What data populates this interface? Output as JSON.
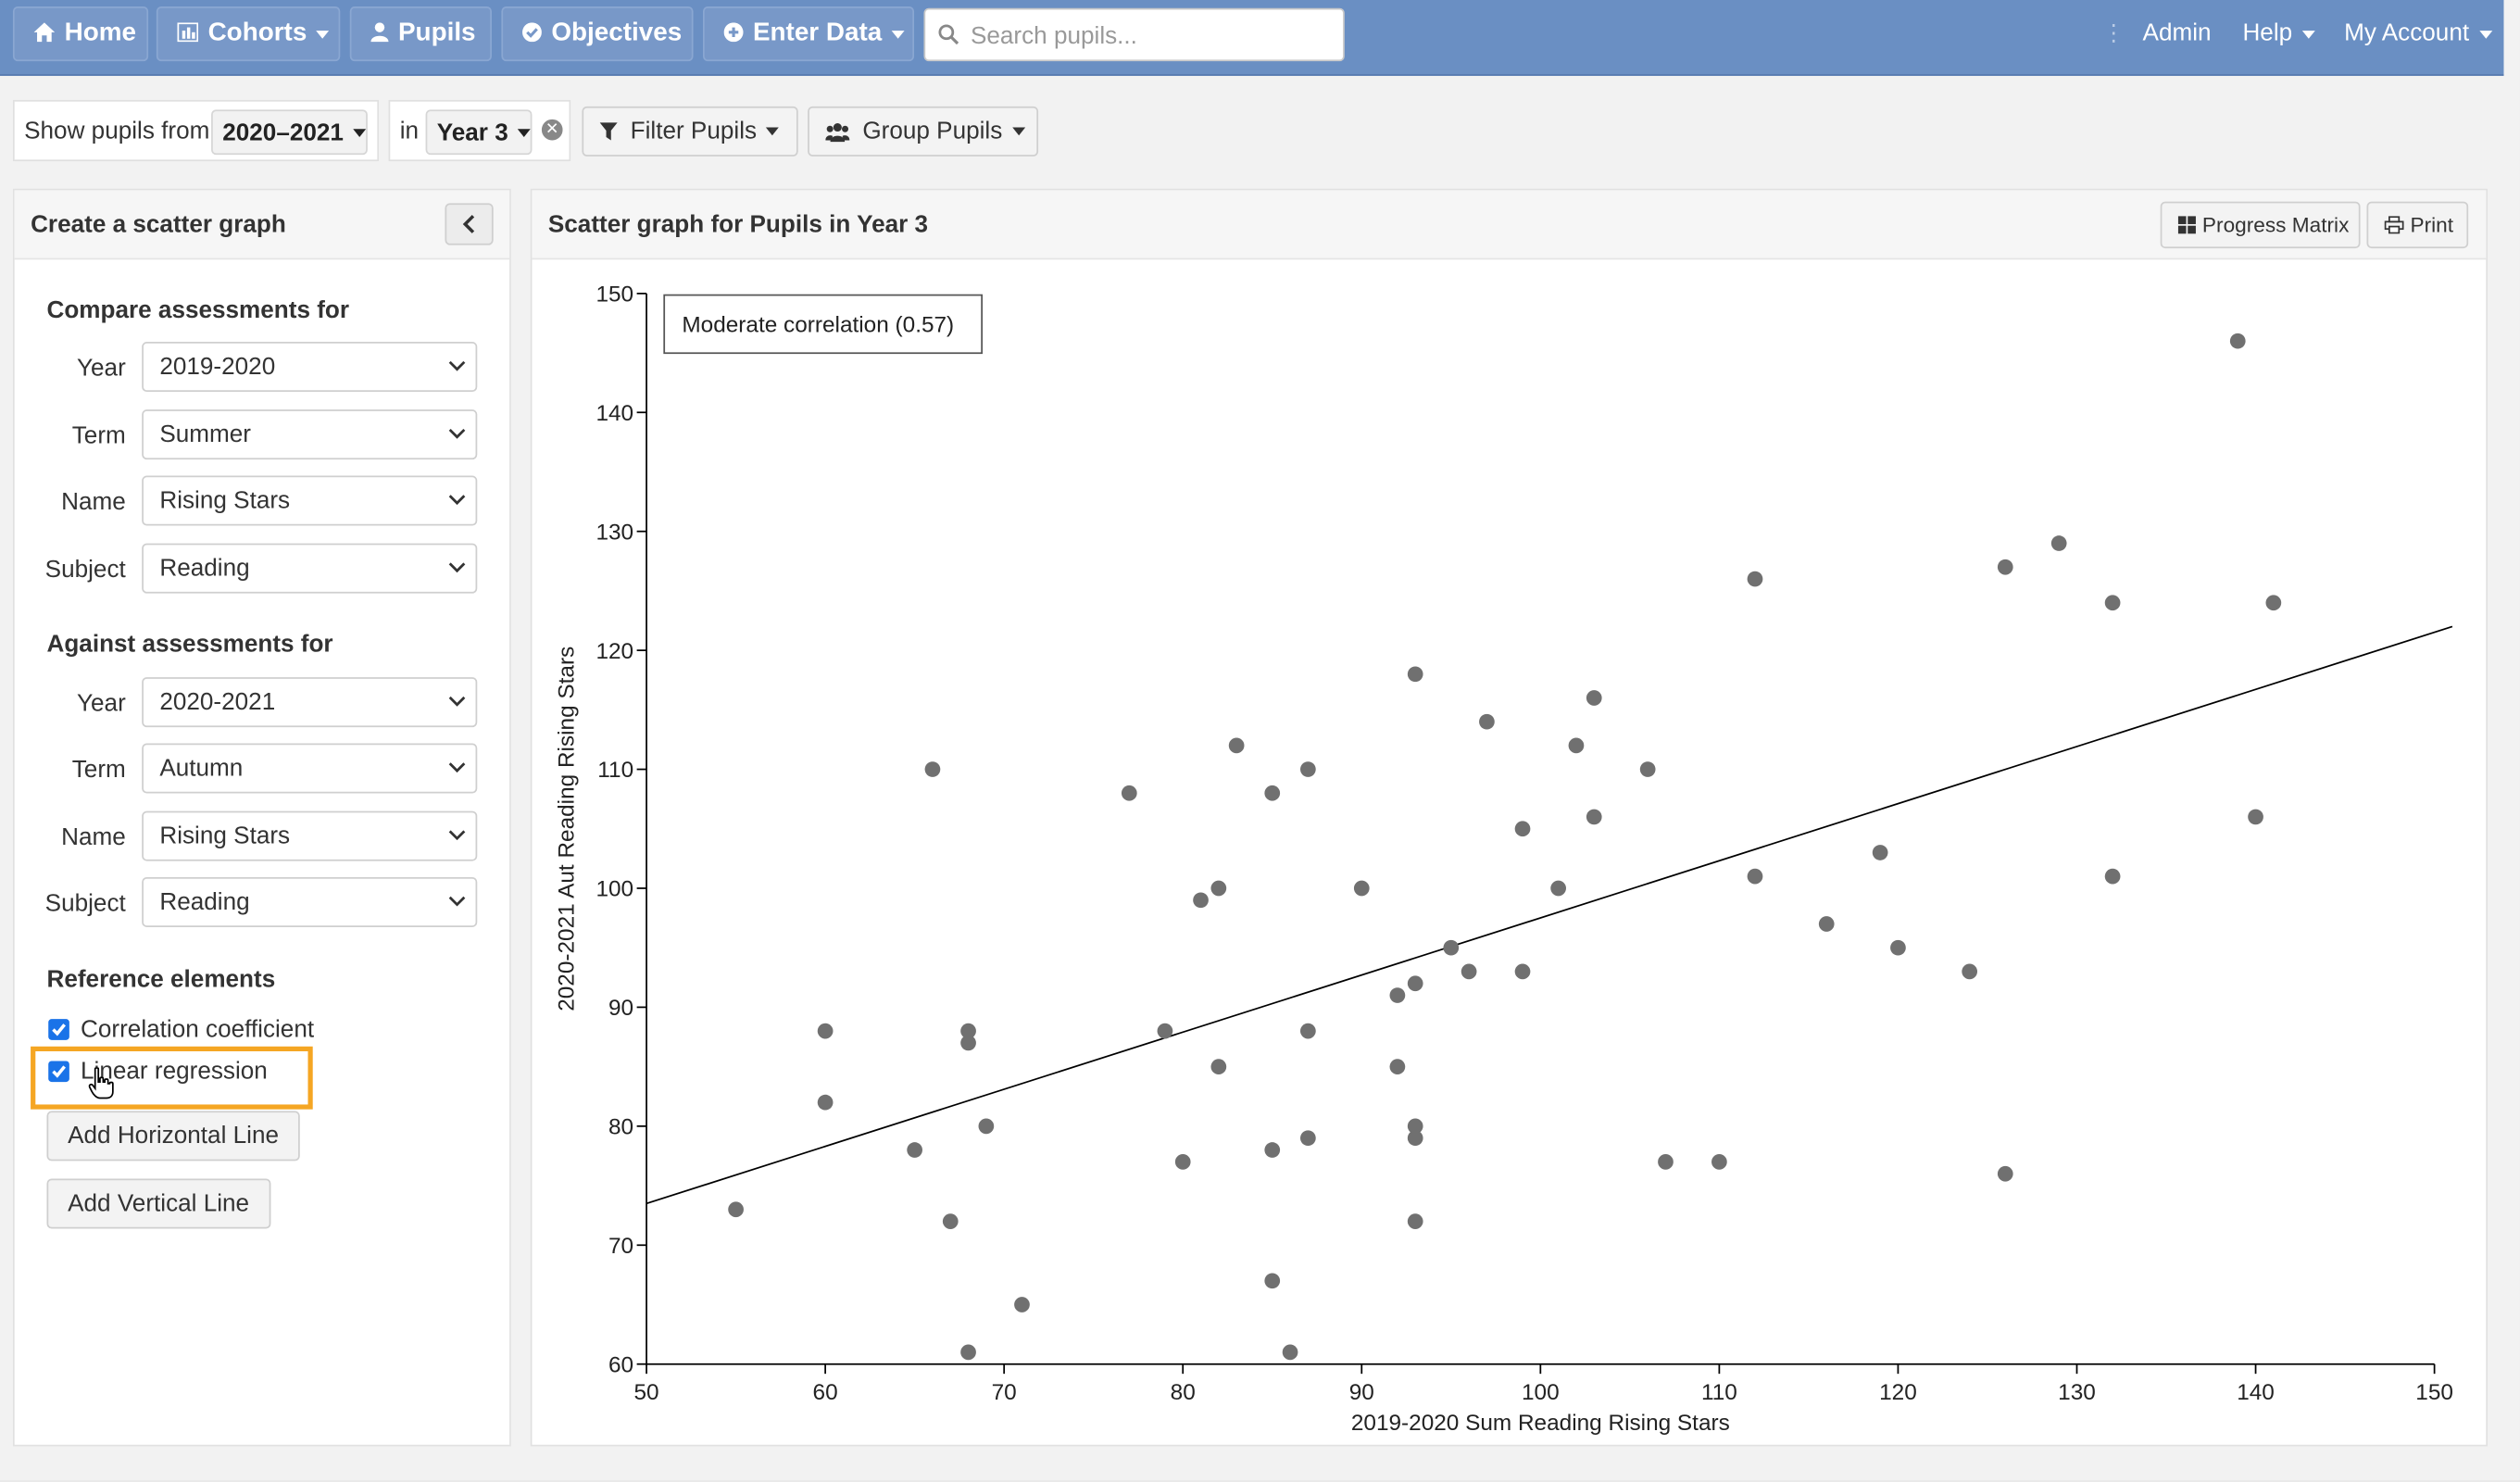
{
  "nav": {
    "home": "Home",
    "cohorts": "Cohorts",
    "pupils": "Pupils",
    "objectives": "Objectives",
    "enter_data": "Enter Data",
    "search_placeholder": "Search pupils...",
    "admin": "Admin",
    "help": "Help",
    "my_account": "My Account"
  },
  "filters": {
    "show_pupils_from": "Show pupils from",
    "academic_year": "2020–2021",
    "in_label": "in",
    "year_group": "Year 3",
    "filter_pupils": "Filter Pupils",
    "group_pupils": "Group Pupils"
  },
  "left_panel": {
    "title": "Create a scatter graph",
    "compare": {
      "heading": "Compare assessments for",
      "year_label": "Year",
      "year": "2019-2020",
      "term_label": "Term",
      "term": "Summer",
      "name_label": "Name",
      "name": "Rising Stars",
      "subject_label": "Subject",
      "subject": "Reading"
    },
    "against": {
      "heading": "Against assessments for",
      "year_label": "Year",
      "year": "2020-2021",
      "term_label": "Term",
      "term": "Autumn",
      "name_label": "Name",
      "name": "Rising Stars",
      "subject_label": "Subject",
      "subject": "Reading"
    },
    "reference": {
      "heading": "Reference elements",
      "correlation": "Correlation coefficient",
      "correlation_checked": true,
      "regression": "Linear regression",
      "regression_checked": true,
      "add_horizontal": "Add Horizontal Line",
      "add_vertical": "Add Vertical Line"
    }
  },
  "right_panel": {
    "title": "Scatter graph for Pupils in Year 3",
    "progress_matrix": "Progress Matrix",
    "print": "Print"
  },
  "colors": {
    "nav_bg": "#6a8fc3",
    "highlight": "#f5a623",
    "checkbox": "#1a73e8",
    "point": "#707070"
  },
  "chart_data": {
    "type": "scatter",
    "xlabel": "2019-2020 Sum Reading Rising Stars",
    "ylabel": "2020-2021 Aut Reading Rising Stars",
    "xlim": [
      50,
      150
    ],
    "ylim": [
      60,
      150
    ],
    "xticks": [
      50,
      60,
      70,
      80,
      90,
      100,
      110,
      120,
      130,
      140,
      150
    ],
    "yticks": [
      60,
      70,
      80,
      90,
      100,
      110,
      120,
      130,
      140,
      150
    ],
    "annotation": "Moderate correlation (0.57)",
    "regression_line": {
      "x": [
        50,
        151
      ],
      "y": [
        73.5,
        122
      ]
    },
    "points": [
      [
        55,
        73
      ],
      [
        60,
        88
      ],
      [
        60,
        82
      ],
      [
        65,
        78
      ],
      [
        66,
        110
      ],
      [
        67,
        72
      ],
      [
        68,
        88
      ],
      [
        68,
        87
      ],
      [
        68,
        61
      ],
      [
        69,
        80
      ],
      [
        71,
        65
      ],
      [
        77,
        108
      ],
      [
        79,
        88
      ],
      [
        80,
        77
      ],
      [
        81,
        99
      ],
      [
        82,
        100
      ],
      [
        82,
        85
      ],
      [
        83,
        112
      ],
      [
        85,
        108
      ],
      [
        85,
        78
      ],
      [
        85,
        67
      ],
      [
        86,
        61
      ],
      [
        87,
        110
      ],
      [
        87,
        88
      ],
      [
        87,
        79
      ],
      [
        90,
        100
      ],
      [
        92,
        91
      ],
      [
        92,
        85
      ],
      [
        93,
        118
      ],
      [
        93,
        92
      ],
      [
        93,
        80
      ],
      [
        93,
        79
      ],
      [
        93,
        72
      ],
      [
        95,
        95
      ],
      [
        96,
        93
      ],
      [
        97,
        114
      ],
      [
        99,
        105
      ],
      [
        99,
        93
      ],
      [
        101,
        100
      ],
      [
        102,
        112
      ],
      [
        103,
        116
      ],
      [
        103,
        106
      ],
      [
        106,
        110
      ],
      [
        107,
        77
      ],
      [
        110,
        77
      ],
      [
        112,
        126
      ],
      [
        112,
        101
      ],
      [
        116,
        97
      ],
      [
        119,
        103
      ],
      [
        120,
        95
      ],
      [
        124,
        93
      ],
      [
        126,
        127
      ],
      [
        126,
        76
      ],
      [
        129,
        129
      ],
      [
        132,
        124
      ],
      [
        132,
        101
      ],
      [
        139,
        146
      ],
      [
        140,
        106
      ],
      [
        141,
        124
      ]
    ]
  }
}
